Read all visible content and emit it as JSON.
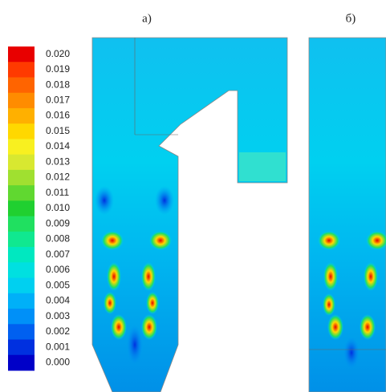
{
  "colorbar": {
    "labels": [
      "0.020",
      "0.019",
      "0.018",
      "0.017",
      "0.016",
      "0.015",
      "0.014",
      "0.013",
      "0.012",
      "0.011",
      "0.010",
      "0.009",
      "0.008",
      "0.007",
      "0.006",
      "0.005",
      "0.004",
      "0.003",
      "0.002",
      "0.001",
      "0.000"
    ],
    "colors": [
      "#e80000",
      "#ff3a00",
      "#ff6400",
      "#ff8c00",
      "#ffb000",
      "#ffd800",
      "#f8f020",
      "#d8e830",
      "#a0e030",
      "#60d830",
      "#20d030",
      "#20e060",
      "#10e890",
      "#00e8c0",
      "#00e0e0",
      "#00d0f0",
      "#00b0f8",
      "#0090f8",
      "#0060f0",
      "#0030e0",
      "#0000c8"
    ]
  },
  "panels": [
    {
      "label": "а)"
    },
    {
      "label": "б)"
    }
  ]
}
